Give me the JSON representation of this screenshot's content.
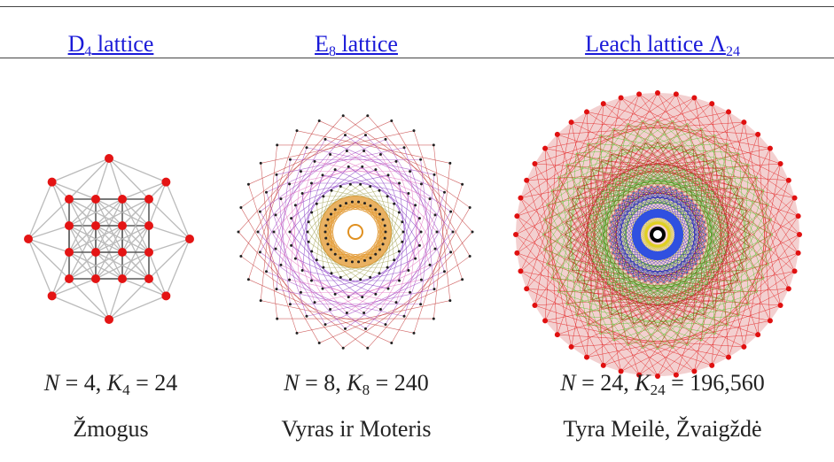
{
  "columns": [
    {
      "header": "D",
      "header_sub": "4",
      "header_rest": " lattice",
      "formula": {
        "n": "4",
        "k_sub": "4",
        "k_value": "24"
      },
      "caption": "Žmogus"
    },
    {
      "header": "E",
      "header_sub": "8",
      "header_rest": " lattice",
      "formula": {
        "n": "8",
        "k_sub": "8",
        "k_value": "240"
      },
      "caption": "Vyras ir Moteris"
    },
    {
      "header": "Leach lattice Λ",
      "header_sub": "24",
      "header_rest": "",
      "formula": {
        "n": "24",
        "k_sub": "24",
        "k_value": "196,560"
      },
      "caption": "Tyra Meilė, Žvaigždė"
    }
  ],
  "colors": {
    "link": "#1a1ad8",
    "d4_vertex": "#e41414",
    "e8_rings": [
      "#c03030",
      "#a040c0",
      "#e070c0",
      "#8030c0",
      "#a0a050",
      "#e09020",
      "#ffffff"
    ],
    "leach_rings": [
      "#e01010",
      "#50c020",
      "#c01010",
      "#40a020",
      "#2020c0",
      "#d0d020",
      "#000000"
    ]
  }
}
